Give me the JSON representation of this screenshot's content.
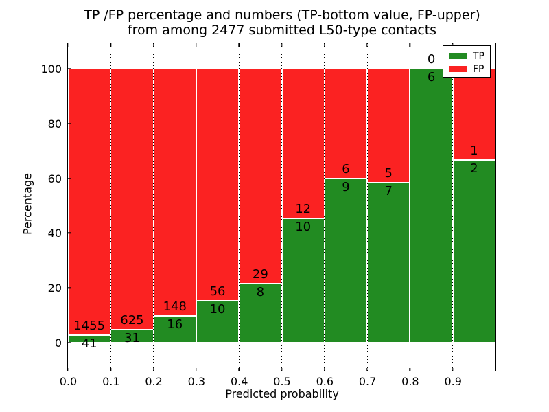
{
  "figure": {
    "title_line1": "TP /FP percentage and numbers (TP-bottom value, FP-upper)",
    "title_line2": "from among 2477 submitted L50-type contacts"
  },
  "chart_data": {
    "type": "bar",
    "stacked": true,
    "normalized_to_percent": true,
    "title": "TP /FP percentage and numbers (TP-bottom value, FP-upper)\nfrom among 2477 submitted L50-type contacts",
    "total_submitted": 2477,
    "xlabel": "Predicted probability",
    "ylabel": "Percentage",
    "xlim": [
      0.0,
      1.0
    ],
    "ylim": [
      -10.3,
      109.3
    ],
    "bins": [
      0.0,
      0.1,
      0.2,
      0.3,
      0.4,
      0.5,
      0.6,
      0.7,
      0.8,
      0.9
    ],
    "bin_width": 0.1,
    "xtick_values": [
      0.0,
      0.1,
      0.2,
      0.3,
      0.4,
      0.5,
      0.6,
      0.7,
      0.8,
      0.9
    ],
    "xtick_labels": [
      "0.0",
      "0.1",
      "0.2",
      "0.3",
      "0.4",
      "0.5",
      "0.6",
      "0.7",
      "0.8",
      "0.9"
    ],
    "ytick_values": [
      0,
      20,
      40,
      60,
      80,
      100
    ],
    "ytick_labels": [
      "0",
      "20",
      "40",
      "60",
      "80",
      "100"
    ],
    "series": [
      {
        "name": "TP",
        "position": "bottom",
        "color": "#228B22",
        "values": [
          41,
          31,
          16,
          10,
          8,
          10,
          9,
          7,
          6,
          2
        ]
      },
      {
        "name": "FP",
        "position": "top",
        "color": "#FB2222",
        "values": [
          1455,
          625,
          148,
          56,
          29,
          12,
          6,
          5,
          0,
          1
        ]
      }
    ],
    "tp_percent_of_bin": [
      2.74,
      4.73,
      9.76,
      15.15,
      21.62,
      45.45,
      60.0,
      58.33,
      100.0,
      66.67
    ],
    "annotation_rule": "FP count above TP/FP boundary, TP count below boundary",
    "legend": {
      "position": "upper-right",
      "entries": [
        "TP",
        "FP"
      ]
    },
    "grid": {
      "show": true,
      "style": "dotted",
      "color": "#000000"
    },
    "bar_edge_color": "#ffffff"
  }
}
